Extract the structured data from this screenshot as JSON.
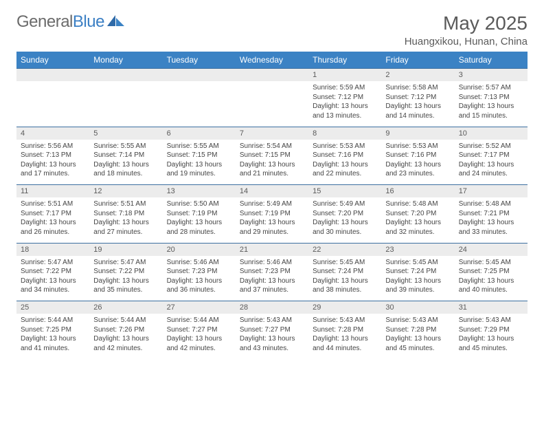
{
  "logo": {
    "text_gray": "General",
    "text_blue": "Blue"
  },
  "title": "May 2025",
  "location": "Huangxikou, Hunan, China",
  "colors": {
    "header_bg": "#3b82c4",
    "header_text": "#ffffff",
    "daynum_bg": "#ececec",
    "row_border": "#3b6fa0",
    "body_text": "#444444",
    "title_text": "#5a5a5a",
    "logo_gray": "#6b6b6b",
    "logo_blue": "#3b7fc4"
  },
  "day_names": [
    "Sunday",
    "Monday",
    "Tuesday",
    "Wednesday",
    "Thursday",
    "Friday",
    "Saturday"
  ],
  "weeks": [
    {
      "nums": [
        "",
        "",
        "",
        "",
        "1",
        "2",
        "3"
      ],
      "cells": [
        null,
        null,
        null,
        null,
        {
          "sunrise": "5:59 AM",
          "sunset": "7:12 PM",
          "daylight": "13 hours and 13 minutes."
        },
        {
          "sunrise": "5:58 AM",
          "sunset": "7:12 PM",
          "daylight": "13 hours and 14 minutes."
        },
        {
          "sunrise": "5:57 AM",
          "sunset": "7:13 PM",
          "daylight": "13 hours and 15 minutes."
        }
      ]
    },
    {
      "nums": [
        "4",
        "5",
        "6",
        "7",
        "8",
        "9",
        "10"
      ],
      "cells": [
        {
          "sunrise": "5:56 AM",
          "sunset": "7:13 PM",
          "daylight": "13 hours and 17 minutes."
        },
        {
          "sunrise": "5:55 AM",
          "sunset": "7:14 PM",
          "daylight": "13 hours and 18 minutes."
        },
        {
          "sunrise": "5:55 AM",
          "sunset": "7:15 PM",
          "daylight": "13 hours and 19 minutes."
        },
        {
          "sunrise": "5:54 AM",
          "sunset": "7:15 PM",
          "daylight": "13 hours and 21 minutes."
        },
        {
          "sunrise": "5:53 AM",
          "sunset": "7:16 PM",
          "daylight": "13 hours and 22 minutes."
        },
        {
          "sunrise": "5:53 AM",
          "sunset": "7:16 PM",
          "daylight": "13 hours and 23 minutes."
        },
        {
          "sunrise": "5:52 AM",
          "sunset": "7:17 PM",
          "daylight": "13 hours and 24 minutes."
        }
      ]
    },
    {
      "nums": [
        "11",
        "12",
        "13",
        "14",
        "15",
        "16",
        "17"
      ],
      "cells": [
        {
          "sunrise": "5:51 AM",
          "sunset": "7:17 PM",
          "daylight": "13 hours and 26 minutes."
        },
        {
          "sunrise": "5:51 AM",
          "sunset": "7:18 PM",
          "daylight": "13 hours and 27 minutes."
        },
        {
          "sunrise": "5:50 AM",
          "sunset": "7:19 PM",
          "daylight": "13 hours and 28 minutes."
        },
        {
          "sunrise": "5:49 AM",
          "sunset": "7:19 PM",
          "daylight": "13 hours and 29 minutes."
        },
        {
          "sunrise": "5:49 AM",
          "sunset": "7:20 PM",
          "daylight": "13 hours and 30 minutes."
        },
        {
          "sunrise": "5:48 AM",
          "sunset": "7:20 PM",
          "daylight": "13 hours and 32 minutes."
        },
        {
          "sunrise": "5:48 AM",
          "sunset": "7:21 PM",
          "daylight": "13 hours and 33 minutes."
        }
      ]
    },
    {
      "nums": [
        "18",
        "19",
        "20",
        "21",
        "22",
        "23",
        "24"
      ],
      "cells": [
        {
          "sunrise": "5:47 AM",
          "sunset": "7:22 PM",
          "daylight": "13 hours and 34 minutes."
        },
        {
          "sunrise": "5:47 AM",
          "sunset": "7:22 PM",
          "daylight": "13 hours and 35 minutes."
        },
        {
          "sunrise": "5:46 AM",
          "sunset": "7:23 PM",
          "daylight": "13 hours and 36 minutes."
        },
        {
          "sunrise": "5:46 AM",
          "sunset": "7:23 PM",
          "daylight": "13 hours and 37 minutes."
        },
        {
          "sunrise": "5:45 AM",
          "sunset": "7:24 PM",
          "daylight": "13 hours and 38 minutes."
        },
        {
          "sunrise": "5:45 AM",
          "sunset": "7:24 PM",
          "daylight": "13 hours and 39 minutes."
        },
        {
          "sunrise": "5:45 AM",
          "sunset": "7:25 PM",
          "daylight": "13 hours and 40 minutes."
        }
      ]
    },
    {
      "nums": [
        "25",
        "26",
        "27",
        "28",
        "29",
        "30",
        "31"
      ],
      "cells": [
        {
          "sunrise": "5:44 AM",
          "sunset": "7:25 PM",
          "daylight": "13 hours and 41 minutes."
        },
        {
          "sunrise": "5:44 AM",
          "sunset": "7:26 PM",
          "daylight": "13 hours and 42 minutes."
        },
        {
          "sunrise": "5:44 AM",
          "sunset": "7:27 PM",
          "daylight": "13 hours and 42 minutes."
        },
        {
          "sunrise": "5:43 AM",
          "sunset": "7:27 PM",
          "daylight": "13 hours and 43 minutes."
        },
        {
          "sunrise": "5:43 AM",
          "sunset": "7:28 PM",
          "daylight": "13 hours and 44 minutes."
        },
        {
          "sunrise": "5:43 AM",
          "sunset": "7:28 PM",
          "daylight": "13 hours and 45 minutes."
        },
        {
          "sunrise": "5:43 AM",
          "sunset": "7:29 PM",
          "daylight": "13 hours and 45 minutes."
        }
      ]
    }
  ],
  "labels": {
    "sunrise": "Sunrise:",
    "sunset": "Sunset:",
    "daylight": "Daylight:"
  }
}
